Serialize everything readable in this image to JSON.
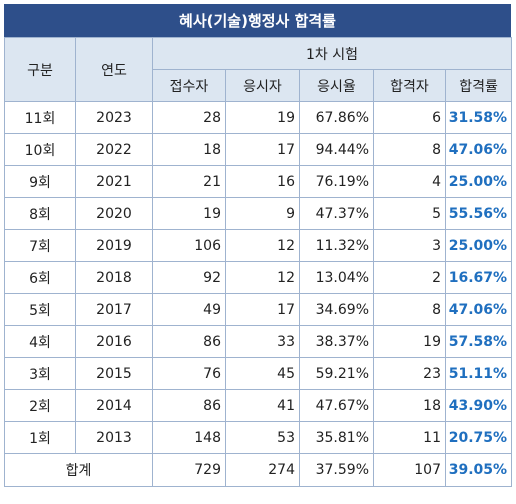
{
  "title": "혜사(기술)행정사 합격률",
  "header": {
    "category": "구분",
    "year": "연도",
    "group": "1차 시험",
    "applicants": "접수자",
    "examinees": "응시자",
    "exam_rate": "응시율",
    "passers": "합격자",
    "pass_rate": "합격률"
  },
  "rows": [
    {
      "round": "11회",
      "year": "2023",
      "applicants": "28",
      "examinees": "19",
      "exam_rate": "67.86%",
      "passers": "6",
      "pass_rate": "31.58%"
    },
    {
      "round": "10회",
      "year": "2022",
      "applicants": "18",
      "examinees": "17",
      "exam_rate": "94.44%",
      "passers": "8",
      "pass_rate": "47.06%"
    },
    {
      "round": "9회",
      "year": "2021",
      "applicants": "21",
      "examinees": "16",
      "exam_rate": "76.19%",
      "passers": "4",
      "pass_rate": "25.00%"
    },
    {
      "round": "8회",
      "year": "2020",
      "applicants": "19",
      "examinees": "9",
      "exam_rate": "47.37%",
      "passers": "5",
      "pass_rate": "55.56%"
    },
    {
      "round": "7회",
      "year": "2019",
      "applicants": "106",
      "examinees": "12",
      "exam_rate": "11.32%",
      "passers": "3",
      "pass_rate": "25.00%"
    },
    {
      "round": "6회",
      "year": "2018",
      "applicants": "92",
      "examinees": "12",
      "exam_rate": "13.04%",
      "passers": "2",
      "pass_rate": "16.67%"
    },
    {
      "round": "5회",
      "year": "2017",
      "applicants": "49",
      "examinees": "17",
      "exam_rate": "34.69%",
      "passers": "8",
      "pass_rate": "47.06%"
    },
    {
      "round": "4회",
      "year": "2016",
      "applicants": "86",
      "examinees": "33",
      "exam_rate": "38.37%",
      "passers": "19",
      "pass_rate": "57.58%"
    },
    {
      "round": "3회",
      "year": "2015",
      "applicants": "76",
      "examinees": "45",
      "exam_rate": "59.21%",
      "passers": "23",
      "pass_rate": "51.11%"
    },
    {
      "round": "2회",
      "year": "2014",
      "applicants": "86",
      "examinees": "41",
      "exam_rate": "47.67%",
      "passers": "18",
      "pass_rate": "43.90%"
    },
    {
      "round": "1회",
      "year": "2013",
      "applicants": "148",
      "examinees": "53",
      "exam_rate": "35.81%",
      "passers": "11",
      "pass_rate": "20.75%"
    }
  ],
  "total": {
    "label": "합계",
    "applicants": "729",
    "examinees": "274",
    "exam_rate": "37.59%",
    "passers": "107",
    "pass_rate": "39.05%"
  },
  "colors": {
    "title_bg": "#2e4f8a",
    "header_bg": "#dce6f1",
    "border": "#9fb3cf",
    "highlight": "#1f6fbf"
  }
}
